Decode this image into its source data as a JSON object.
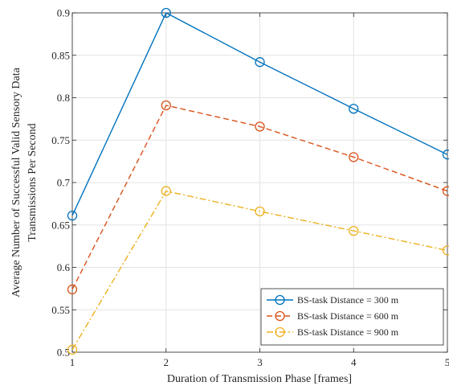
{
  "chart_data": {
    "type": "line",
    "title": "",
    "xlabel": "Duration of Transmission Phase [frames]",
    "ylabel_lines": [
      "Average Number of Successful Valid Sensory Data",
      "Transmissions Per Second"
    ],
    "xlim": [
      1,
      5
    ],
    "ylim": [
      0.5,
      0.9
    ],
    "xticks": [
      "1",
      "2",
      "3",
      "4",
      "5"
    ],
    "yticks": [
      "0.5",
      "0.55",
      "0.6",
      "0.65",
      "0.7",
      "0.75",
      "0.8",
      "0.85",
      "0.9"
    ],
    "grid": true,
    "legend_position": "bottom-right",
    "x": [
      1,
      2,
      3,
      4,
      5
    ],
    "series": [
      {
        "name": "BS-task Distance = 300 m",
        "values": [
          0.661,
          0.9,
          0.842,
          0.787,
          0.733
        ],
        "color": "#0072BD",
        "dash": "solid",
        "marker": "circle"
      },
      {
        "name": "BS-task Distance = 600 m",
        "values": [
          0.574,
          0.791,
          0.766,
          0.73,
          0.69
        ],
        "color": "#D95319",
        "dash": "dashed",
        "marker": "circle"
      },
      {
        "name": "BS-task Distance = 900 m",
        "values": [
          0.503,
          0.69,
          0.666,
          0.643,
          0.62
        ],
        "color": "#EDB120",
        "dash": "dashdot",
        "marker": "circle"
      }
    ]
  }
}
